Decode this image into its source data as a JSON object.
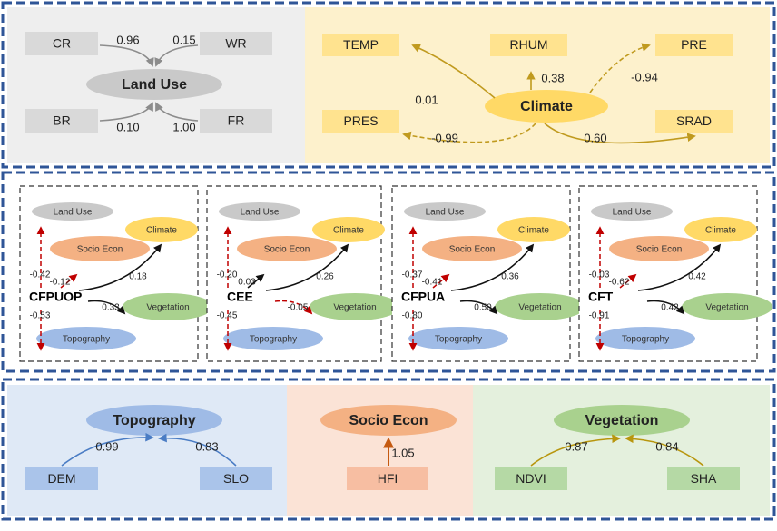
{
  "top": {
    "land_use": {
      "title": "Land Use",
      "indicators": [
        {
          "label": "CR",
          "coef": "0.96"
        },
        {
          "label": "WR",
          "coef": "0.15"
        },
        {
          "label": "BR",
          "coef": "0.10"
        },
        {
          "label": "FR",
          "coef": "1.00"
        }
      ]
    },
    "climate": {
      "title": "Climate",
      "indicators": [
        {
          "label": "TEMP",
          "coef": "0.01"
        },
        {
          "label": "RHUM",
          "coef": "0.38"
        },
        {
          "label": "PRE",
          "coef": "-0.94"
        },
        {
          "label": "PRES",
          "coef": "-0.99"
        },
        {
          "label": "SRAD",
          "coef": "0.60"
        }
      ]
    }
  },
  "middle": {
    "node_labels": {
      "land_use": "Land Use",
      "climate": "Climate",
      "socio": "Socio Econ",
      "vegetation": "Vegetation",
      "topography": "Topography"
    },
    "panels": [
      {
        "outcome": "CFPUOP",
        "land_use": "-0.42",
        "socio": "-0.12",
        "climate": "0.18",
        "vegetation": "0.33",
        "topography": "-0.53"
      },
      {
        "outcome": "CEE",
        "land_use": "-0.20",
        "socio": "0.03",
        "climate": "0.26",
        "vegetation": "-0.05",
        "topography": "-0.45"
      },
      {
        "outcome": "CFPUA",
        "land_use": "-0.37",
        "socio": "-0.41",
        "climate": "0.36",
        "vegetation": "0.50",
        "topography": "-0.80"
      },
      {
        "outcome": "CFT",
        "land_use": "-0.03",
        "socio": "-0.62",
        "climate": "0.42",
        "vegetation": "0.42",
        "topography": "-0.91"
      }
    ]
  },
  "bottom": {
    "topography": {
      "title": "Topography",
      "indicators": [
        {
          "label": "DEM",
          "coef": "0.99"
        },
        {
          "label": "SLO",
          "coef": "0.83"
        }
      ]
    },
    "socio": {
      "title": "Socio Econ",
      "indicators": [
        {
          "label": "HFI",
          "coef": "1.05"
        }
      ]
    },
    "vegetation": {
      "title": "Vegetation",
      "indicators": [
        {
          "label": "NDVI",
          "coef": "0.87"
        },
        {
          "label": "SHA",
          "coef": "0.84"
        }
      ]
    }
  },
  "colors": {
    "border": "#2f5597",
    "positive": "#111111",
    "negative": "#c00000",
    "land_use_bg": "#eeeeee",
    "land_use_box": "#d9d9d9",
    "land_use_node": "#c9c9c9",
    "land_use_arrow": "#8c8c8c",
    "climate_bg": "#fdf1cc",
    "climate_box": "#ffe38f",
    "climate_node": "#ffd966",
    "climate_arrow": "#c09a1e",
    "topo_bg": "#dfe9f6",
    "topo_box": "#aac4ea",
    "topo_node": "#9fbbe6",
    "topo_arrow": "#4a7cc4",
    "socio_bg": "#fbe3d6",
    "socio_box": "#f7bea2",
    "socio_node": "#f4b183",
    "socio_arrow": "#c55a11",
    "veg_bg": "#e4f0dd",
    "veg_box": "#b5d9a5",
    "veg_node": "#a9d18e",
    "veg_arrow": "#b8960e"
  }
}
